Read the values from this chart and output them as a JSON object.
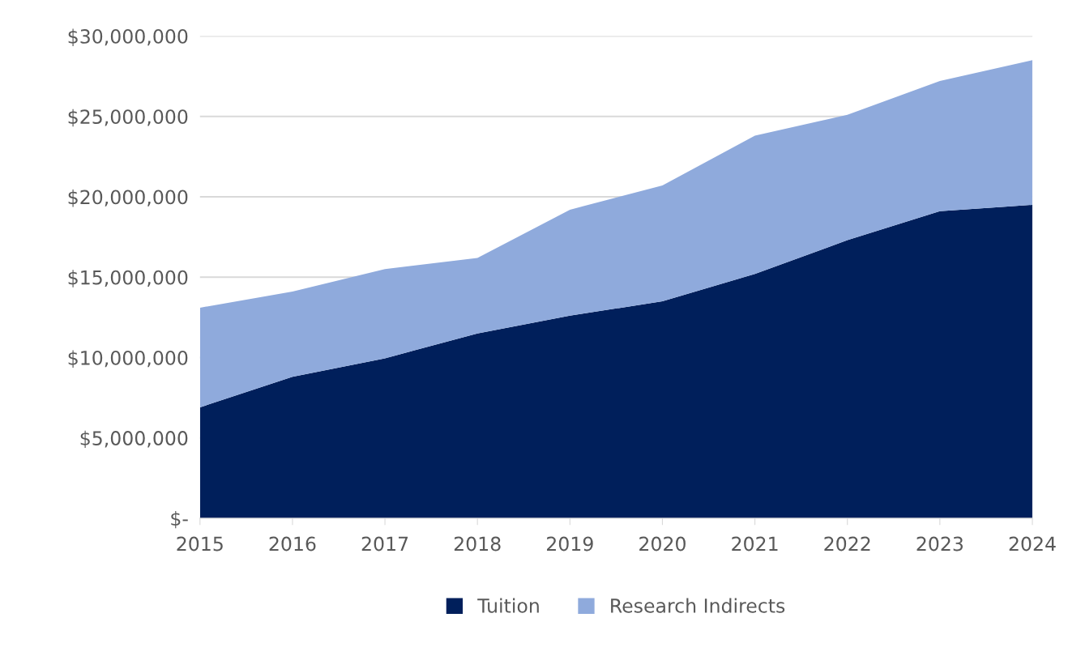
{
  "chart_data": {
    "type": "area",
    "stacked": true,
    "categories": [
      "2015",
      "2016",
      "2017",
      "2018",
      "2019",
      "2020",
      "2021",
      "2022",
      "2023",
      "2024"
    ],
    "series": [
      {
        "name": "Tuition",
        "color": "#001f5b",
        "values": [
          6900000,
          8800000,
          9950000,
          11500000,
          12600000,
          13500000,
          15200000,
          17300000,
          19100000,
          19500000
        ]
      },
      {
        "name": "Research Indirects",
        "color": "#8faadc",
        "values": [
          6200000,
          5300000,
          5550000,
          4700000,
          6600000,
          7200000,
          8600000,
          7800000,
          8100000,
          9000000
        ]
      }
    ],
    "ylim": [
      0,
      30000000
    ],
    "yticks": [
      {
        "value": 0,
        "label": "$-"
      },
      {
        "value": 5000000,
        "label": "$5,000,000"
      },
      {
        "value": 10000000,
        "label": "$10,000,000"
      },
      {
        "value": 15000000,
        "label": "$15,000,000"
      },
      {
        "value": 20000000,
        "label": "$20,000,000"
      },
      {
        "value": 25000000,
        "label": "$25,000,000"
      },
      {
        "value": 30000000,
        "label": "$30,000,000"
      }
    ],
    "grid": "y",
    "legend": "bottom"
  }
}
